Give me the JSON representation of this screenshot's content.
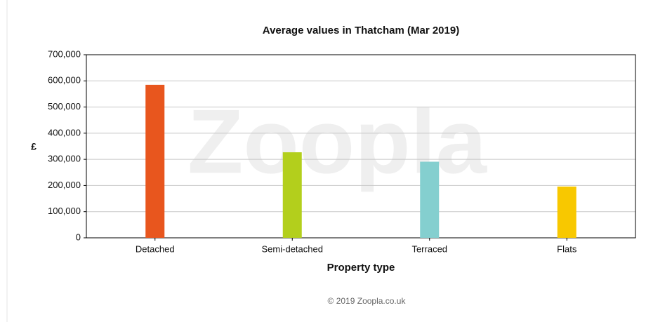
{
  "chart_data": {
    "type": "bar",
    "title": "Average values in Thatcham (Mar 2019)",
    "categories": [
      "Detached",
      "Semi-detached",
      "Terraced",
      "Flats"
    ],
    "values": [
      585000,
      327000,
      291000,
      196000
    ],
    "colors": [
      "#e8561e",
      "#b3cf1c",
      "#84cfcf",
      "#f8c800"
    ],
    "xlabel": "Property type",
    "ylabel": "£",
    "ylim": [
      0,
      700000
    ],
    "yticks": [
      0,
      {
        "value": 100000,
        "label": "100,000"
      },
      {
        "value": 200000,
        "label": "200,000"
      },
      {
        "value": 300000,
        "label": "300,000"
      },
      {
        "value": 400000,
        "label": "400,000"
      },
      {
        "value": 500000,
        "label": "500,000"
      },
      {
        "value": 600000,
        "label": "600,000"
      },
      {
        "value": 700000,
        "label": "700,000"
      }
    ],
    "grid": true,
    "watermark": "Zoopla",
    "footer": "© 2019 Zoopla.co.uk"
  }
}
